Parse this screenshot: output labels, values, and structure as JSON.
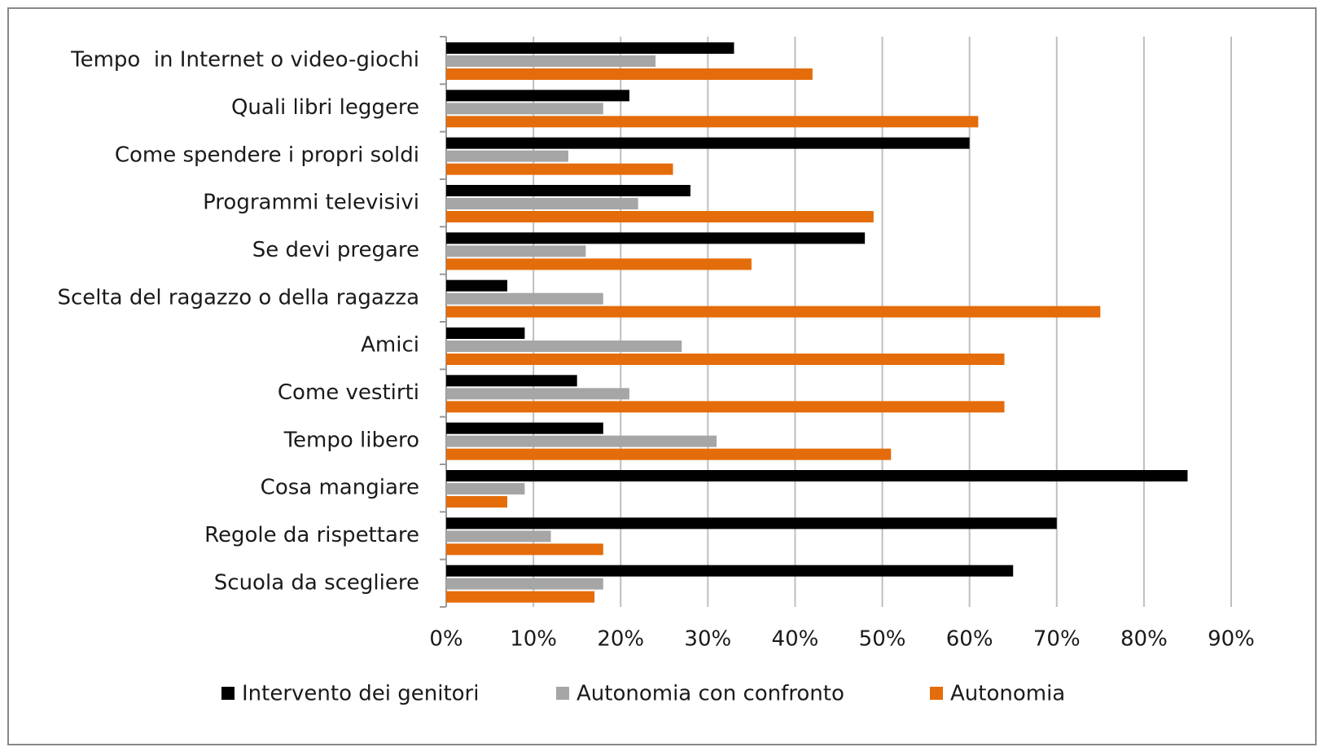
{
  "chart_data": {
    "type": "bar",
    "orientation": "horizontal",
    "categories": [
      "Tempo  in Internet o video-giochi",
      "Quali libri leggere",
      "Come spendere i propri soldi",
      "Programmi televisivi",
      "Se devi pregare",
      "Scelta del ragazzo o della ragazza",
      "Amici",
      "Come vestirti",
      "Tempo libero",
      "Cosa mangiare",
      "Regole da rispettare",
      "Scuola da scegliere"
    ],
    "series": [
      {
        "name": "Intervento dei genitori",
        "color": "#000000",
        "values": [
          33,
          21,
          60,
          28,
          48,
          7,
          9,
          15,
          18,
          85,
          70,
          65
        ]
      },
      {
        "name": "Autonomia con confronto",
        "color": "#a6a6a6",
        "values": [
          24,
          18,
          14,
          22,
          16,
          18,
          27,
          21,
          31,
          9,
          12,
          18
        ]
      },
      {
        "name": "Autonomia",
        "color": "#e46c0a",
        "values": [
          42,
          61,
          26,
          49,
          35,
          75,
          64,
          64,
          51,
          7,
          18,
          17
        ]
      }
    ],
    "xlim": [
      0,
      90
    ],
    "xticks": [
      {
        "value": 0,
        "label": "0%"
      },
      {
        "value": 10,
        "label": "10%"
      },
      {
        "value": 20,
        "label": "20%"
      },
      {
        "value": 30,
        "label": "30%"
      },
      {
        "value": 40,
        "label": "40%"
      },
      {
        "value": 50,
        "label": "50%"
      },
      {
        "value": 60,
        "label": "60%"
      },
      {
        "value": 70,
        "label": "70%"
      },
      {
        "value": 80,
        "label": "80%"
      },
      {
        "value": 90,
        "label": "90%"
      }
    ],
    "grid": true,
    "legend": "bottom"
  }
}
